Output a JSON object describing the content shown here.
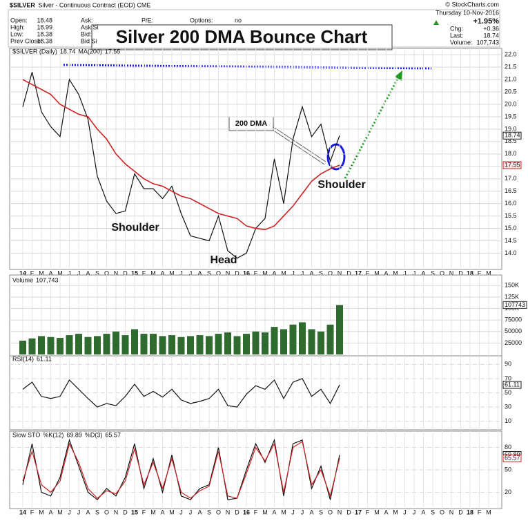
{
  "header": {
    "symbol": "$SILVER",
    "description": "Silver - Continuous Contract (EOD) CME",
    "date": "Thursday 10-Nov-2016",
    "copyright": "© StockCharts.com",
    "quote": [
      [
        "Open:",
        "18.48"
      ],
      [
        "High:",
        "18.99"
      ],
      [
        "Low:",
        "18.38"
      ],
      [
        "Prev Close:",
        "18.38"
      ]
    ],
    "quote2": [
      "Ask:",
      "Ask Si",
      "Bid:",
      "Bid Si"
    ],
    "pe": "P/E:",
    "options": [
      "Options:",
      "no"
    ],
    "pct": "+1.95%",
    "summary": [
      [
        "Chg:",
        "+0.36"
      ],
      [
        "Last:",
        "18.74"
      ],
      [
        "Volume:",
        "107,743"
      ]
    ]
  },
  "chart_data": [
    {
      "type": "line",
      "title": "Silver 200 DMA Bounce Chart",
      "annotations": [
        "200 DMA",
        "Shoulder",
        "Head",
        "Shoulder"
      ],
      "grid": true,
      "categories": [
        "14",
        "F",
        "M",
        "A",
        "M",
        "J",
        "J",
        "A",
        "S",
        "O",
        "N",
        "D",
        "15",
        "F",
        "M",
        "A",
        "M",
        "J",
        "J",
        "A",
        "S",
        "O",
        "N",
        "D",
        "16",
        "F",
        "M",
        "A",
        "M",
        "J",
        "J",
        "A",
        "S",
        "O",
        "N",
        "D",
        "17",
        "F",
        "M",
        "A",
        "M",
        "J",
        "J",
        "A",
        "S",
        "O",
        "N",
        "D",
        "18",
        "F",
        "M"
      ],
      "ylim": [
        13.4,
        22.2
      ],
      "yticks": [
        {
          "value": 14,
          "label": "14.0"
        },
        {
          "value": 14.5,
          "label": "14.5"
        },
        {
          "value": 15,
          "label": "15.0"
        },
        {
          "value": 15.5,
          "label": "15.5"
        },
        {
          "value": 16,
          "label": "16.0"
        },
        {
          "value": 16.5,
          "label": "16.5"
        },
        {
          "value": 17,
          "label": "17.0"
        },
        {
          "value": 17.5,
          "label": "17.5"
        },
        {
          "value": 18,
          "label": "18.0"
        },
        {
          "value": 18.5,
          "label": "18.5"
        },
        {
          "value": 19,
          "label": "19.0"
        },
        {
          "value": 19.5,
          "label": "19.5"
        },
        {
          "value": 20,
          "label": "20.0"
        },
        {
          "value": 20.5,
          "label": "20.5"
        },
        {
          "value": 21,
          "label": "21.0"
        },
        {
          "value": 21.5,
          "label": "21.5"
        },
        {
          "value": 22,
          "label": "22.0"
        }
      ],
      "series": [
        {
          "name": "$SILVER (Daily)",
          "color": "#111111",
          "values": [
            19.9,
            21.3,
            19.7,
            19.1,
            18.7,
            21.0,
            20.4,
            19.4,
            17.1,
            16.1,
            15.6,
            15.7,
            17.2,
            16.6,
            16.6,
            16.2,
            16.7,
            15.6,
            14.7,
            14.6,
            14.5,
            15.5,
            14.1,
            13.8,
            14.0,
            15.0,
            15.4,
            17.8,
            16.0,
            18.6,
            19.9,
            18.7,
            19.2,
            17.7,
            18.74,
            null,
            null,
            null,
            null,
            null,
            null,
            null,
            null,
            null,
            null,
            null,
            null,
            null,
            null,
            null,
            null
          ]
        },
        {
          "name": "MA(200)",
          "color": "#cc2222",
          "values": [
            21.0,
            20.8,
            20.6,
            20.4,
            20.0,
            19.8,
            19.6,
            19.5,
            19.0,
            18.6,
            18.0,
            17.6,
            17.3,
            17.0,
            16.8,
            16.7,
            16.5,
            16.3,
            16.2,
            16.0,
            15.8,
            15.6,
            15.5,
            15.4,
            15.1,
            15.0,
            14.95,
            15.1,
            15.5,
            15.9,
            16.4,
            16.9,
            17.2,
            17.4,
            17.55,
            null,
            null,
            null,
            null,
            null,
            null,
            null,
            null,
            null,
            null,
            null,
            null,
            null,
            null,
            null,
            null
          ]
        }
      ]
    },
    {
      "type": "bar",
      "grid": true,
      "ylim": [
        0,
        170000
      ],
      "yticks": [
        25000,
        50000,
        75000,
        {
          "value": 100000,
          "label": "100K"
        },
        {
          "value": 125000,
          "label": "125K"
        },
        {
          "value": 150000,
          "label": "150K"
        }
      ],
      "last": {
        "value": 107743,
        "label": "107,743"
      },
      "series": [
        {
          "name": "Volume",
          "color": "#2f6b2f",
          "values": [
            30000,
            35000,
            40000,
            38000,
            36000,
            42000,
            45000,
            38000,
            40000,
            45000,
            50000,
            42000,
            55000,
            45000,
            45000,
            40000,
            42000,
            38000,
            40000,
            42000,
            40000,
            45000,
            48000,
            40000,
            45000,
            50000,
            48000,
            60000,
            55000,
            65000,
            70000,
            55000,
            50000,
            65000,
            107743,
            null,
            null,
            null,
            null,
            null,
            null,
            null,
            null,
            null,
            null,
            null,
            null,
            null,
            null,
            null,
            null
          ]
        }
      ]
    },
    {
      "type": "line",
      "grid": true,
      "ylim": [
        0,
        100
      ],
      "yticks": [
        10,
        30,
        50,
        70,
        90
      ],
      "series": [
        {
          "name": "RSI(14)",
          "color": "#111111",
          "values": [
            55,
            65,
            45,
            42,
            45,
            68,
            55,
            42,
            30,
            35,
            32,
            45,
            62,
            45,
            52,
            44,
            55,
            40,
            35,
            38,
            42,
            55,
            32,
            30,
            48,
            60,
            55,
            68,
            42,
            65,
            70,
            45,
            55,
            35,
            61.11,
            null,
            null,
            null,
            null,
            null,
            null,
            null,
            null,
            null,
            null,
            null,
            null,
            null,
            null,
            null,
            null
          ]
        }
      ]
    },
    {
      "type": "line",
      "title": "Slow STO",
      "grid": true,
      "ylim": [
        0,
        100
      ],
      "yticks": [
        20,
        50,
        80
      ],
      "categories": [
        "14",
        "F",
        "M",
        "A",
        "M",
        "J",
        "J",
        "A",
        "S",
        "O",
        "N",
        "D",
        "15",
        "F",
        "M",
        "A",
        "M",
        "J",
        "J",
        "A",
        "S",
        "O",
        "N",
        "D",
        "16",
        "F",
        "M",
        "A",
        "M",
        "J",
        "J",
        "A",
        "S",
        "O",
        "N",
        "D",
        "17",
        "F",
        "M",
        "A",
        "M",
        "J",
        "J",
        "A",
        "S",
        "O",
        "N",
        "D",
        "18",
        "F",
        "M"
      ],
      "series": [
        {
          "name": "%K(12)",
          "color": "#111111",
          "values": [
            30,
            85,
            20,
            15,
            40,
            90,
            55,
            20,
            10,
            25,
            15,
            40,
            85,
            25,
            65,
            20,
            70,
            15,
            10,
            25,
            30,
            80,
            10,
            12,
            50,
            85,
            60,
            90,
            15,
            85,
            90,
            25,
            55,
            10,
            69.89,
            null,
            null,
            null,
            null,
            null,
            null,
            null,
            null,
            null,
            null,
            null,
            null,
            null,
            null,
            null,
            null
          ]
        },
        {
          "name": "%D(3)",
          "color": "#cc2222",
          "values": [
            35,
            75,
            30,
            20,
            35,
            85,
            60,
            25,
            12,
            22,
            18,
            35,
            78,
            30,
            60,
            25,
            65,
            20,
            12,
            22,
            28,
            75,
            15,
            12,
            45,
            80,
            62,
            85,
            20,
            80,
            88,
            30,
            50,
            15,
            65.57,
            null,
            null,
            null,
            null,
            null,
            null,
            null,
            null,
            null,
            null,
            null,
            null,
            null,
            null,
            null,
            null
          ]
        }
      ]
    }
  ]
}
